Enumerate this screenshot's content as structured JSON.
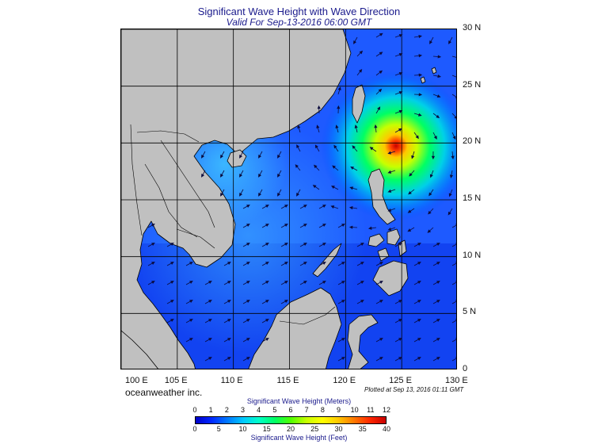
{
  "header": {
    "title": "Significant Wave Height with Wave Direction",
    "subtitle": "Valid For Sep-13-2016 06:00 GMT"
  },
  "map": {
    "lon_range": [
      100,
      130
    ],
    "lat_range": [
      0,
      30
    ],
    "lat_labels": [
      "30 N",
      "25 N",
      "20 N",
      "15 N",
      "10 N",
      "5 N",
      "0"
    ],
    "lon_labels": [
      "100 E",
      "105 E",
      "110 E",
      "115 E",
      "120 E",
      "125 E",
      "130 E"
    ],
    "land_color": "#c0c0c0",
    "storm_center": {
      "lon": 124.5,
      "lat": 20.5
    }
  },
  "footer": {
    "credit": "oceanweather inc.",
    "plotted": "Plotted at Sep 13, 2016 01:11 GMT"
  },
  "colorbar": {
    "meters_title": "Significant Wave Height (Meters)",
    "meters_ticks": [
      "0",
      "1",
      "2",
      "3",
      "4",
      "5",
      "6",
      "7",
      "8",
      "9",
      "10",
      "11",
      "12"
    ],
    "feet_title": "Significant Wave Height (Feet)",
    "feet_ticks": [
      "0",
      "5",
      "10",
      "15",
      "20",
      "25",
      "30",
      "35",
      "40"
    ],
    "colors": [
      "#0000c8",
      "#0028ff",
      "#0078ff",
      "#00c8ff",
      "#00ffc8",
      "#00ff64",
      "#50ff00",
      "#c8ff00",
      "#ffff00",
      "#ffc800",
      "#ff7800",
      "#ff2800",
      "#c80000"
    ]
  }
}
